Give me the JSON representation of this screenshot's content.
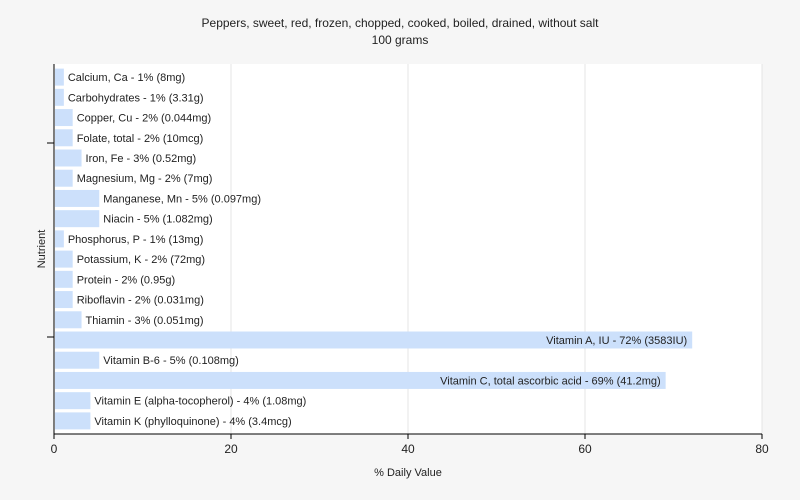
{
  "chart_data": {
    "type": "bar",
    "orientation": "horizontal",
    "title": "Peppers, sweet, red, frozen, chopped, cooked, boiled, drained, without salt",
    "subtitle": "100 grams",
    "xlabel": "% Daily Value",
    "ylabel": "Nutrient",
    "xlim": [
      0,
      80
    ],
    "xticks": [
      0,
      20,
      40,
      60,
      80
    ],
    "grid": true,
    "bar_color": "#cce0fb",
    "categories": [
      "Calcium, Ca",
      "Carbohydrates",
      "Copper, Cu",
      "Folate, total",
      "Iron, Fe",
      "Magnesium, Mg",
      "Manganese, Mn",
      "Niacin",
      "Phosphorus, P",
      "Potassium, K",
      "Protein",
      "Riboflavin",
      "Thiamin",
      "Vitamin A, IU",
      "Vitamin B-6",
      "Vitamin C, total ascorbic acid",
      "Vitamin E (alpha-tocopherol)",
      "Vitamin K (phylloquinone)"
    ],
    "values": [
      1,
      1,
      2,
      2,
      3,
      2,
      5,
      5,
      1,
      2,
      2,
      2,
      3,
      72,
      5,
      69,
      4,
      4
    ],
    "labels": [
      "Calcium, Ca - 1% (8mg)",
      "Carbohydrates - 1% (3.31g)",
      "Copper, Cu - 2% (0.044mg)",
      "Folate, total - 2% (10mcg)",
      "Iron, Fe - 3% (0.52mg)",
      "Magnesium, Mg - 2% (7mg)",
      "Manganese, Mn - 5% (0.097mg)",
      "Niacin - 5% (1.082mg)",
      "Phosphorus, P - 1% (13mg)",
      "Potassium, K - 2% (72mg)",
      "Protein - 2% (0.95g)",
      "Riboflavin - 2% (0.031mg)",
      "Thiamin - 3% (0.051mg)",
      "Vitamin A, IU - 72% (3583IU)",
      "Vitamin B-6 - 5% (0.108mg)",
      "Vitamin C, total ascorbic acid - 69% (41.2mg)",
      "Vitamin E (alpha-tocopherol) - 4% (1.08mg)",
      "Vitamin K (phylloquinone) - 4% (3.4mcg)"
    ]
  }
}
